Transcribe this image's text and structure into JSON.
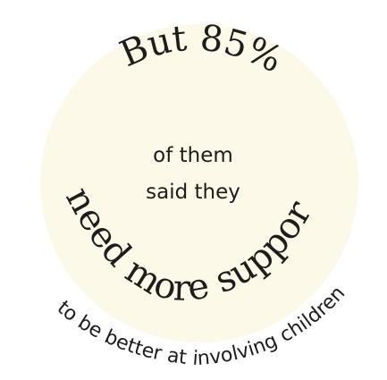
{
  "graphic": {
    "background_color": "#ffffff",
    "circle_color": "#fcf9e8",
    "text_color": "#1f1c1c",
    "headline": "But 85%",
    "body_line_1": "of them",
    "body_line_2": "said they",
    "emphasis": "need more support",
    "tagline": "to be better at involving children"
  }
}
